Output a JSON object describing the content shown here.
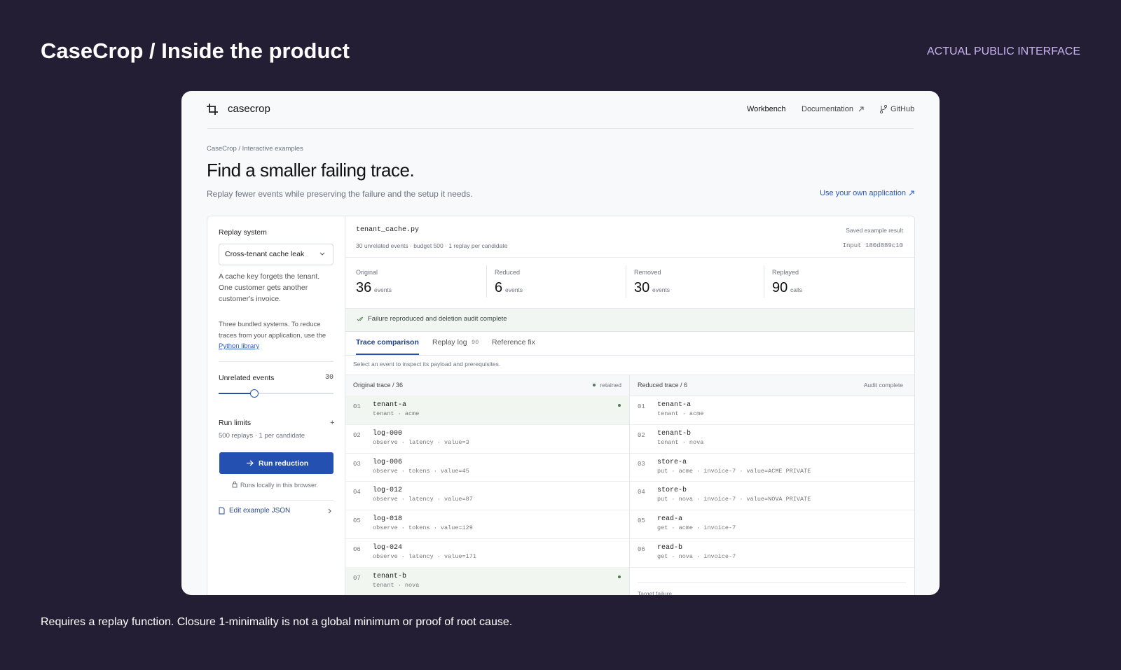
{
  "slide": {
    "title": "CaseCrop / Inside the product",
    "tag": "ACTUAL PUBLIC INTERFACE",
    "footnote": "Requires a replay function. Closure 1-minimality is not a global minimum or proof of root cause."
  },
  "nav": {
    "brand": "casecrop",
    "links": [
      "Workbench",
      "Documentation",
      "GitHub"
    ]
  },
  "page": {
    "breadcrumb": "CaseCrop / Interactive examples",
    "heading": "Find a smaller failing trace.",
    "subheading": "Replay fewer events while preserving the failure and the setup it needs.",
    "link": "Use your own application"
  },
  "sidebar": {
    "replay_label": "Replay system",
    "select": "Cross-tenant cache leak",
    "description": "A cache key forgets the tenant. One customer gets another customer's invoice.",
    "bundled_text": "Three bundled systems. To reduce traces from your application, use the",
    "bundled_link": "Python library",
    "unrelated_label": "Unrelated events",
    "unrelated_value": 30,
    "run_limits_label": "Run limits",
    "run_limits_toggle": "+",
    "run_limits_detail": "500 replays · 1 per candidate",
    "button": "Run reduction",
    "runs_locally": "Runs locally in this browser.",
    "edit_json": "Edit example JSON"
  },
  "panel": {
    "file": "tenant_cache.py",
    "meta": "30 unrelated events · budget 500 · 1 replay per candidate",
    "saved": "Saved example result",
    "input": "Input 180d889c10"
  },
  "stats": [
    {
      "label": "Original",
      "value": 36,
      "unit": "events"
    },
    {
      "label": "Reduced",
      "value": 6,
      "unit": "events"
    },
    {
      "label": "Removed",
      "value": 30,
      "unit": "events"
    },
    {
      "label": "Replayed",
      "value": 90,
      "unit": "calls"
    }
  ],
  "status": "Failure reproduced and deletion audit complete",
  "tabs": [
    {
      "label": "Trace comparison"
    },
    {
      "label": "Replay log",
      "badge": "90"
    },
    {
      "label": "Reference fix"
    }
  ],
  "hint": "Select an event to inspect its payload and prerequisites.",
  "original_trace": {
    "title": "Original trace / 36",
    "legend": "retained",
    "rows": [
      {
        "index": "01",
        "name": "tenant-a",
        "detail": "tenant · acme",
        "retained": true
      },
      {
        "index": "02",
        "name": "log-000",
        "detail": "observe · latency · value=3",
        "retained": false
      },
      {
        "index": "03",
        "name": "log-006",
        "detail": "observe · tokens · value=45",
        "retained": false
      },
      {
        "index": "04",
        "name": "log-012",
        "detail": "observe · latency · value=87",
        "retained": false
      },
      {
        "index": "05",
        "name": "log-018",
        "detail": "observe · tokens · value=129",
        "retained": false
      },
      {
        "index": "06",
        "name": "log-024",
        "detail": "observe · latency · value=171",
        "retained": false
      },
      {
        "index": "07",
        "name": "tenant-b",
        "detail": "tenant · nova",
        "retained": true
      }
    ]
  },
  "reduced_trace": {
    "title": "Reduced trace / 6",
    "status": "Audit complete",
    "footer": "Target failure",
    "rows": [
      {
        "index": "01",
        "name": "tenant-a",
        "detail": "tenant · acme"
      },
      {
        "index": "02",
        "name": "tenant-b",
        "detail": "tenant · nova"
      },
      {
        "index": "03",
        "name": "store-a",
        "detail": "put · acme · invoice-7 · value=ACME PRIVATE"
      },
      {
        "index": "04",
        "name": "store-b",
        "detail": "put · nova · invoice-7 · value=NOVA PRIVATE"
      },
      {
        "index": "05",
        "name": "read-a",
        "detail": "get · acme · invoice-7"
      },
      {
        "index": "06",
        "name": "read-b",
        "detail": "get · nova · invoice-7"
      }
    ]
  }
}
